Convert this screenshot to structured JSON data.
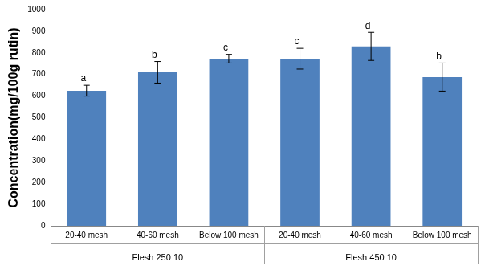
{
  "chart_data": {
    "type": "bar",
    "y_label": "Concentration(mg/100g rutin)",
    "categories": [
      "20-40 mesh",
      "40-60 mesh",
      "Below 100 mesh",
      "20-40 mesh",
      "40-60 mesh",
      "Below 100 mesh"
    ],
    "groups": [
      {
        "label": "Flesh 250 10",
        "count": 3
      },
      {
        "label": "Flesh 450 10",
        "count": 3
      }
    ],
    "values": [
      625,
      710,
      773,
      773,
      830,
      688
    ],
    "errors": [
      25,
      50,
      20,
      48,
      65,
      65
    ],
    "annotations": [
      "a",
      "b",
      "c",
      "c",
      "d",
      "b"
    ],
    "color": "#4f81bd",
    "ylim": [
      0,
      1000
    ],
    "yticks": [
      0,
      100,
      200,
      300,
      400,
      500,
      600,
      700,
      800,
      900,
      1000
    ],
    "grid": false
  }
}
